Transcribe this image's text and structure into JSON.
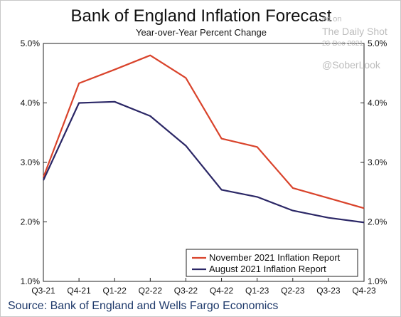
{
  "chart_data": {
    "type": "line",
    "title": "Bank of England Inflation Forecast",
    "subtitle": "Year-over-Year Percent Change",
    "categories": [
      "Q3-21",
      "Q4-21",
      "Q1-22",
      "Q2-22",
      "Q3-22",
      "Q4-22",
      "Q1-23",
      "Q2-23",
      "Q3-23",
      "Q4-23"
    ],
    "series": [
      {
        "name": "November 2021 Inflation Report",
        "color": "#d9432b",
        "values": [
          2.75,
          4.33,
          4.56,
          4.8,
          4.42,
          3.4,
          3.26,
          2.57,
          2.4,
          2.23
        ]
      },
      {
        "name": "August 2021 Inflation Report",
        "color": "#2b2766",
        "values": [
          2.7,
          4.0,
          4.02,
          3.78,
          3.28,
          2.54,
          2.42,
          2.19,
          2.07,
          1.99
        ]
      }
    ],
    "ylim": [
      1.0,
      5.0
    ],
    "yticks": [
      "1.0%",
      "2.0%",
      "3.0%",
      "4.0%",
      "5.0%"
    ],
    "grid": false,
    "legend_position": "bottom-right",
    "source": "Source: Bank of England and Wells Fargo Economics"
  },
  "watermark": {
    "line1": "ed on",
    "line2": "The Daily Shot",
    "line3": "23-Dec-2021",
    "line4": "@SoberLook"
  }
}
